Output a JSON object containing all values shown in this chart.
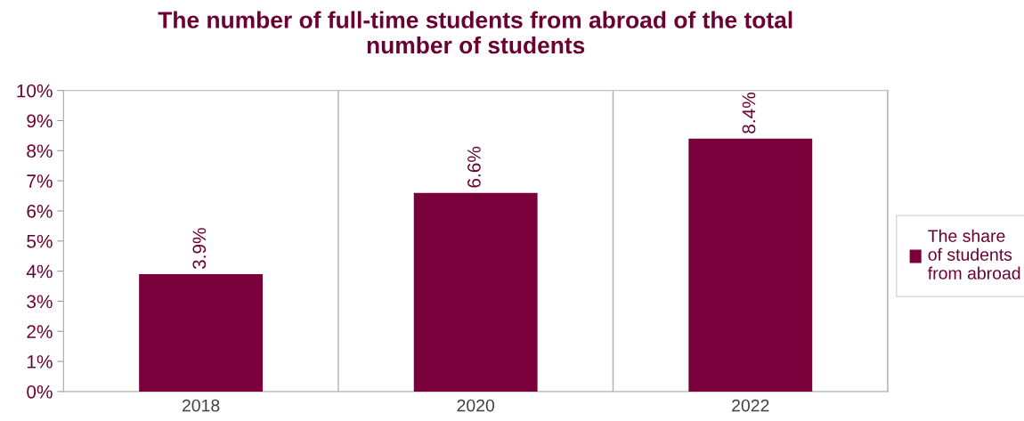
{
  "chart_data": {
    "type": "bar",
    "title": "The number of full-time students from abroad of the total\nnumber of students",
    "categories": [
      "2018",
      "2020",
      "2022"
    ],
    "series": [
      {
        "name": "The share of students from abroad",
        "color": "#7a003c",
        "values": [
          3.9,
          6.6,
          8.4
        ]
      }
    ],
    "value_labels": [
      "3.9%",
      "6.6%",
      "8.4%"
    ],
    "ylim": [
      0,
      10
    ],
    "yticks": [
      {
        "value": 0,
        "label": "0%"
      },
      {
        "value": 1,
        "label": "1%"
      },
      {
        "value": 2,
        "label": "2%"
      },
      {
        "value": 3,
        "label": "3%"
      },
      {
        "value": 4,
        "label": "4%"
      },
      {
        "value": 5,
        "label": "5%"
      },
      {
        "value": 6,
        "label": "6%"
      },
      {
        "value": 7,
        "label": "7%"
      },
      {
        "value": 8,
        "label": "8%"
      },
      {
        "value": 9,
        "label": "9%"
      },
      {
        "value": 10,
        "label": "10%"
      }
    ],
    "grid": "x",
    "legend": "right"
  }
}
